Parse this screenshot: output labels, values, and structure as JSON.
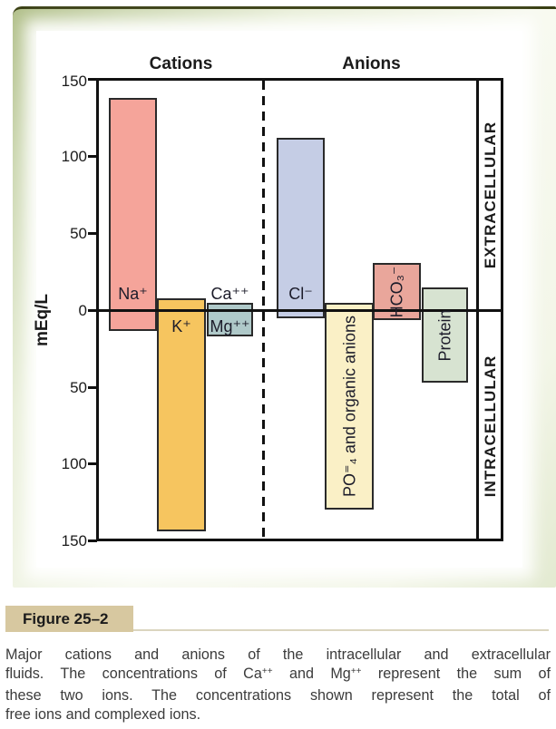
{
  "figure": {
    "y_axis_title": "mEq/L",
    "group_labels": {
      "cations": "Cations",
      "anions": "Anions"
    },
    "side_labels": {
      "upper": "EXTRACELLULAR",
      "lower": "INTRACELLULAR"
    },
    "y_ticks": [
      "150",
      "100",
      "50",
      "0",
      "50",
      "100",
      "150"
    ]
  },
  "bar_labels": {
    "na": "Na⁺",
    "k": "K⁺",
    "ca": "Ca⁺⁺",
    "mg": "Mg⁺⁺",
    "cl": "Cl⁻",
    "po4": "PO⁼₄ and organic anions",
    "hco3": "HCO₃⁻",
    "protein": "Protein"
  },
  "caption": {
    "label": "Figure 25–2",
    "lines": [
      {
        "justify": true,
        "segments": [
          {
            "text": "Major cations and anions of the intracellular and extracellular"
          }
        ]
      },
      {
        "justify": true,
        "segments": [
          {
            "text": "fluids. The concentrations of Ca"
          },
          {
            "text": "++",
            "sup": true
          },
          {
            "text": " and Mg"
          },
          {
            "text": "++",
            "sup": true
          },
          {
            "text": " represent the sum of"
          }
        ]
      },
      {
        "justify": true,
        "segments": [
          {
            "text": "these two ions. The concentrations shown represent the total of"
          }
        ]
      },
      {
        "justify": false,
        "segments": [
          {
            "text": "free ions and complexed ions."
          }
        ]
      }
    ]
  },
  "colors": {
    "frame_green": "#cdd8b2",
    "frame_top_line": "#383e12",
    "figure_label_bg": "#d7c8a0",
    "axis_black": "#111111"
  },
  "chart_data": {
    "type": "bar",
    "title": "Major cations and anions of the intracellular and extracellular fluids",
    "ylabel": "mEq/L",
    "units": "mEq/L",
    "ylim_extracellular": [
      0,
      150
    ],
    "ylim_intracellular": [
      0,
      150
    ],
    "grid": false,
    "groups": [
      "Cations",
      "Anions"
    ],
    "series": [
      {
        "key": "na",
        "ion": "Na+",
        "group": "Cations",
        "extracellular_mEq_L": 138,
        "intracellular_mEq_L": 13,
        "color": "#f5a49a"
      },
      {
        "key": "k",
        "ion": "K+",
        "group": "Cations",
        "extracellular_mEq_L": 8,
        "intracellular_mEq_L": 143,
        "color": "#f6c55f"
      },
      {
        "key": "camg",
        "ion": "Ca++ / Mg++",
        "group": "Cations",
        "extracellular_mEq_L": 5,
        "intracellular_mEq_L": 17,
        "color": "#afc9c9"
      },
      {
        "key": "cl",
        "ion": "Cl−",
        "group": "Anions",
        "extracellular_mEq_L": 112,
        "intracellular_mEq_L": 5,
        "color": "#c5cde5"
      },
      {
        "key": "po4",
        "ion": "PO4≡ and organic anions",
        "group": "Anions",
        "extracellular_mEq_L": 5,
        "intracellular_mEq_L": 129,
        "color": "#faf0c6"
      },
      {
        "key": "hco3",
        "ion": "HCO3−",
        "group": "Anions",
        "extracellular_mEq_L": 31,
        "intracellular_mEq_L": 6,
        "color": "#e9a69b"
      },
      {
        "key": "protein",
        "ion": "Protein",
        "group": "Anions",
        "extracellular_mEq_L": 15,
        "intracellular_mEq_L": 47,
        "color": "#d7e3d1"
      }
    ]
  }
}
